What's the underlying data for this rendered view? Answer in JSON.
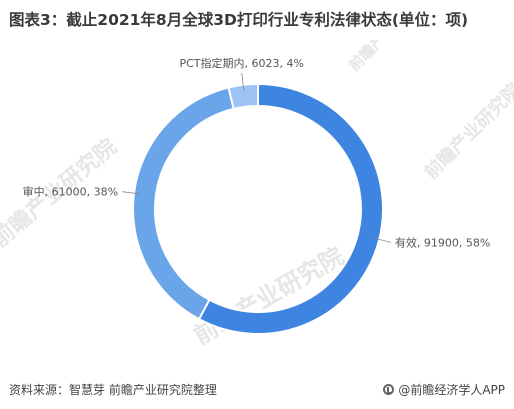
{
  "title": "图表3：截止2021年8月全球3D打印行业专利法律状态(单位：项)",
  "source": "资料来源：智慧芽 前瞻产业研究院整理",
  "brand": "@前瞻经济学人APP",
  "watermark": "前瞻产业研究院",
  "colors": {
    "有效": "#3d85e0",
    "审中": "#6aa5ea",
    "PCT指定期内": "#9cc3f3"
  },
  "chart_data": {
    "type": "pie",
    "style": "donut",
    "slices": [
      {
        "label": "有效",
        "value": 91900,
        "percent": 58,
        "text": "有效, 91900, 58%"
      },
      {
        "label": "审中",
        "value": 61000,
        "percent": 38,
        "text": "审中, 61000, 38%"
      },
      {
        "label": "PCT指定期内",
        "value": 6023,
        "percent": 4,
        "text": "PCT指定期内, 6023, 4%"
      }
    ]
  }
}
